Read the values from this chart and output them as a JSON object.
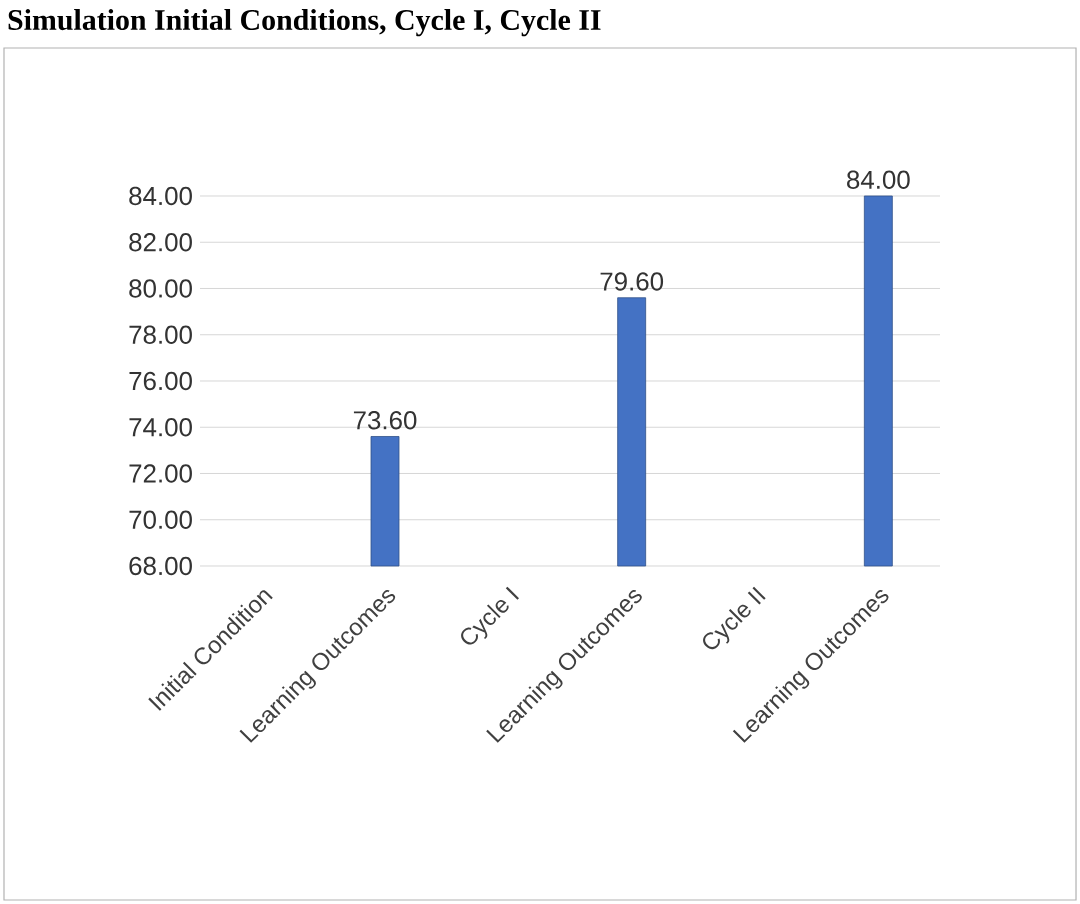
{
  "chart_data": {
    "type": "bar",
    "title": "Simulation Initial Conditions, Cycle I, Cycle II",
    "categories": [
      "Initial Condition",
      "Learning Outcomes",
      "Cycle I",
      "Learning Outcomes",
      "Cycle II",
      "Learning Outcomes"
    ],
    "values": [
      null,
      73.6,
      null,
      79.6,
      null,
      84.0
    ],
    "value_labels": [
      null,
      "73.60",
      null,
      "79.60",
      null,
      "84.00"
    ],
    "color": "#4472c4",
    "ylim": [
      68,
      84
    ],
    "yticks": [
      {
        "value": 68,
        "label": "68.00"
      },
      {
        "value": 70,
        "label": "70.00"
      },
      {
        "value": 72,
        "label": "72.00"
      },
      {
        "value": 74,
        "label": "74.00"
      },
      {
        "value": 76,
        "label": "76.00"
      },
      {
        "value": 78,
        "label": "78.00"
      },
      {
        "value": 80,
        "label": "80.00"
      },
      {
        "value": 82,
        "label": "82.00"
      },
      {
        "value": 84,
        "label": "84.00"
      }
    ],
    "grid": "y"
  }
}
